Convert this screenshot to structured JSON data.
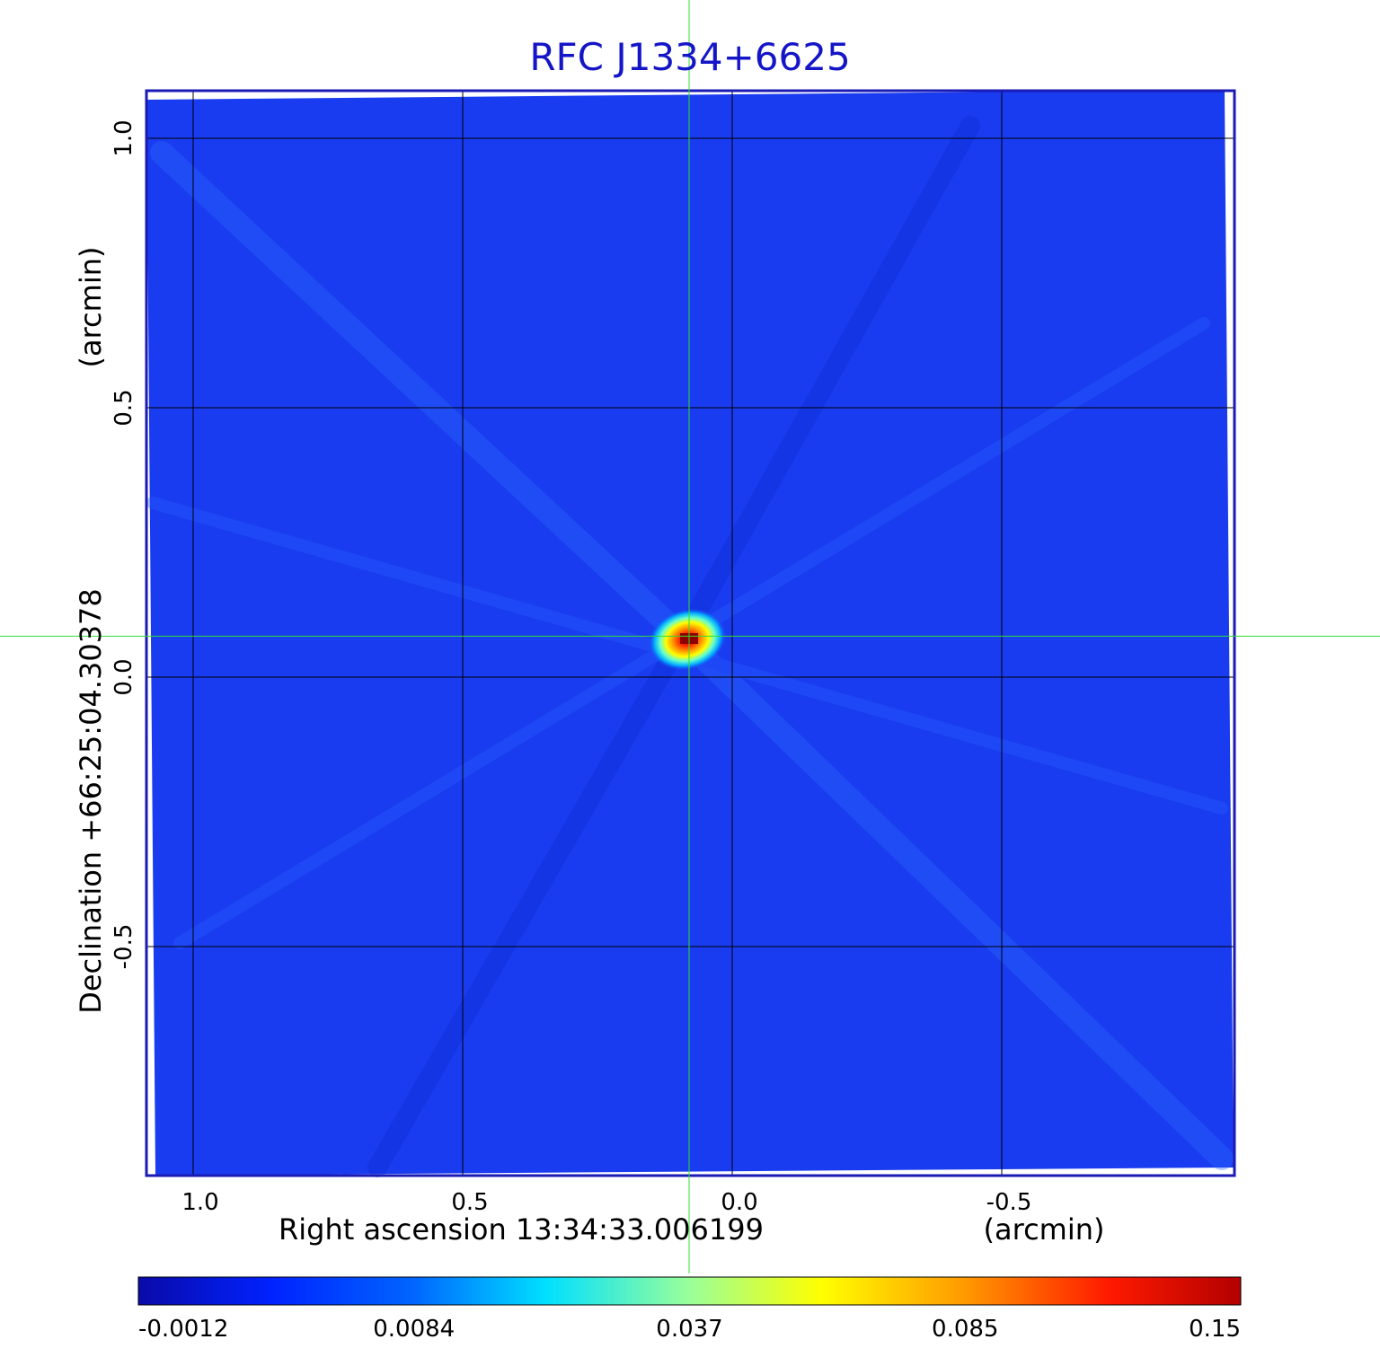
{
  "chart_data": {
    "type": "heatmap",
    "title": "RFC J1334+6625",
    "xlabel": "Right ascension  13:34:33.006199",
    "xunit": "(arcmin)",
    "ylabel": "Declination  +66:25:04.30378",
    "yunit": "(arcmin)",
    "x_ticks": [
      1.0,
      0.5,
      0.0,
      -0.5
    ],
    "x_tick_labels": [
      "1.0",
      "0.5",
      "0.0",
      "-0.5"
    ],
    "y_ticks": [
      1.0,
      0.5,
      0.0,
      -0.5
    ],
    "y_tick_labels": [
      "1.0",
      "0.5",
      "0.0",
      "-0.5"
    ],
    "xlim": [
      1.09,
      -0.93
    ],
    "ylim": [
      -0.93,
      1.09
    ],
    "grid": true,
    "crosshair": {
      "x": 0.08,
      "y": 0.076
    },
    "source_peak": {
      "x": 0.08,
      "y": 0.07,
      "value": 0.15
    },
    "colorbar": {
      "ticks": [
        "-0.0012",
        "0.0084",
        "0.037",
        "0.085",
        "0.15"
      ],
      "colors": [
        "#0a0aa8",
        "#0033ff",
        "#00e6ff",
        "#9aff8a",
        "#ffff00",
        "#ff8c00",
        "#ff0000",
        "#b30000"
      ],
      "placement": "bottom"
    },
    "colors": {
      "title": "#1515c8",
      "frame": "#1a1ab4",
      "grid": "#000000",
      "crosshair": "#33dd33",
      "background_map": "#1a3cf0"
    }
  }
}
